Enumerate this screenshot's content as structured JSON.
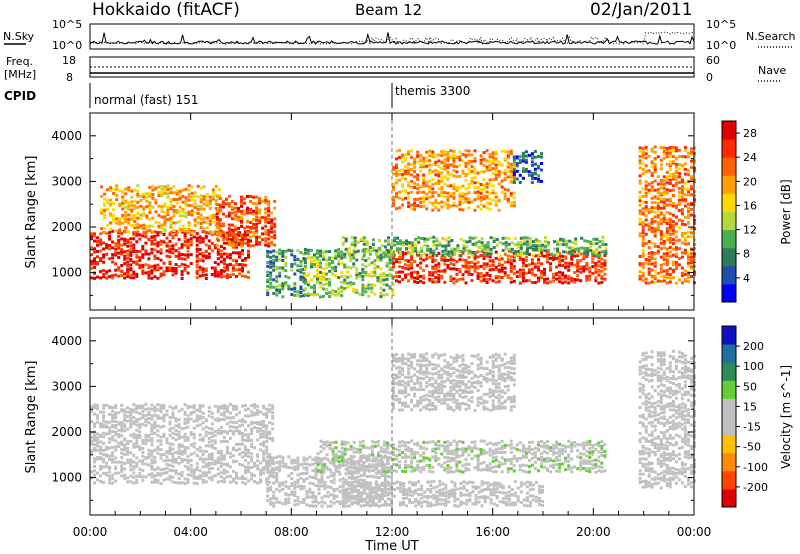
{
  "header": {
    "station": "Hokkaido (fitACF)",
    "beam": "Beam 12",
    "date": "02/Jan/2011"
  },
  "left_labels": {
    "nsky": "N.Sky",
    "freq": "Freq.",
    "freq_unit": "[MHz]",
    "cpid": "CPID"
  },
  "right_labels": {
    "nsearch": "N.Search",
    "nave": "Nave"
  },
  "noise_panel": {
    "left_ticks": [
      "10^5",
      "10^0"
    ],
    "right_ticks": [
      "10^5",
      "10^0"
    ]
  },
  "freq_panel": {
    "left_ticks": [
      "18",
      "8"
    ],
    "right_ticks": [
      "60",
      "0"
    ]
  },
  "cpid_panel": {
    "segments": [
      {
        "label": "normal (fast) 151",
        "start_hour": 0
      },
      {
        "label": "themis 3300",
        "start_hour": 12
      }
    ]
  },
  "colors": {
    "power_scale": [
      "#0000ff",
      "#1f4fb0",
      "#2e7d5a",
      "#4caf50",
      "#b6d83a",
      "#ffd800",
      "#ffa000",
      "#ff6400",
      "#ff2800",
      "#e00000"
    ],
    "velocity_scale": [
      "#e00000",
      "#ff4500",
      "#ff8c00",
      "#ffc000",
      "#c0c0c0",
      "#c0c0c0",
      "#66cc33",
      "#2e8b57",
      "#1f6fa0",
      "#1010c0"
    ],
    "ground_scatter": "#c0c0c0"
  },
  "chart_data": [
    {
      "type": "heatmap",
      "panel": "power",
      "xlabel": "Time UT",
      "ylabel": "Slant Range [km]",
      "xlim": [
        "00:00",
        "00:00"
      ],
      "x_hours": [
        0,
        24
      ],
      "ylim": [
        180,
        4500
      ],
      "x_ticks": [
        "00:00",
        "04:00",
        "08:00",
        "12:00",
        "16:00",
        "20:00",
        "00:00"
      ],
      "y_ticks": [
        1000,
        2000,
        3000,
        4000
      ],
      "colorbar": {
        "label": "Power [dB]",
        "ticks": [
          4,
          8,
          12,
          16,
          20,
          24,
          28
        ],
        "range": [
          0,
          30
        ]
      },
      "scatter_regions": [
        {
          "t0": 0.0,
          "t1": 6.3,
          "r0": 900,
          "r1": 1900,
          "level": 27
        },
        {
          "t0": 0.4,
          "t1": 5.2,
          "r0": 1900,
          "r1": 2900,
          "level": 19
        },
        {
          "t0": 5.0,
          "t1": 7.3,
          "r0": 1600,
          "r1": 2700,
          "level": 24
        },
        {
          "t0": 7.0,
          "t1": 8.5,
          "r0": 500,
          "r1": 1500,
          "level": 9
        },
        {
          "t0": 8.5,
          "t1": 12.0,
          "r0": 500,
          "r1": 1500,
          "level": 12
        },
        {
          "t0": 12.0,
          "t1": 20.5,
          "r0": 800,
          "r1": 1500,
          "level": 26
        },
        {
          "t0": 10.0,
          "t1": 20.5,
          "r0": 1400,
          "r1": 1800,
          "level": 11
        },
        {
          "t0": 12.0,
          "t1": 16.8,
          "r0": 2400,
          "r1": 3700,
          "level": 20
        },
        {
          "t0": 16.8,
          "t1": 18.0,
          "r0": 3000,
          "r1": 3700,
          "level": 5
        },
        {
          "t0": 21.8,
          "t1": 24.0,
          "r0": 800,
          "r1": 3800,
          "level": 22
        }
      ]
    },
    {
      "type": "heatmap",
      "panel": "velocity",
      "xlabel": "Time UT",
      "ylabel": "Slant Range [km]",
      "xlim": [
        "00:00",
        "00:00"
      ],
      "x_hours": [
        0,
        24
      ],
      "ylim": [
        180,
        4500
      ],
      "x_ticks": [
        "00:00",
        "04:00",
        "08:00",
        "12:00",
        "16:00",
        "20:00",
        "00:00"
      ],
      "y_ticks": [
        1000,
        2000,
        3000,
        4000
      ],
      "colorbar": {
        "label": "Velocity [m s^-1]",
        "ticks": [
          200,
          100,
          50,
          15,
          -15,
          -50,
          -100,
          -200
        ],
        "range": [
          -250,
          250
        ]
      },
      "scatter_regions": [
        {
          "t0": 0.0,
          "t1": 7.3,
          "r0": 900,
          "r1": 2600,
          "level": 0
        },
        {
          "t0": 7.0,
          "t1": 12.0,
          "r0": 400,
          "r1": 1500,
          "level": 0
        },
        {
          "t0": 12.0,
          "t1": 16.8,
          "r0": 2500,
          "r1": 3700,
          "level": 0
        },
        {
          "t0": 9.0,
          "t1": 20.5,
          "r0": 1150,
          "r1": 1800,
          "level": 30
        },
        {
          "t0": 10.0,
          "t1": 18.0,
          "r0": 400,
          "r1": 900,
          "level": -20
        },
        {
          "t0": 21.8,
          "t1": 24.0,
          "r0": 800,
          "r1": 3800,
          "level": 0
        }
      ]
    }
  ]
}
